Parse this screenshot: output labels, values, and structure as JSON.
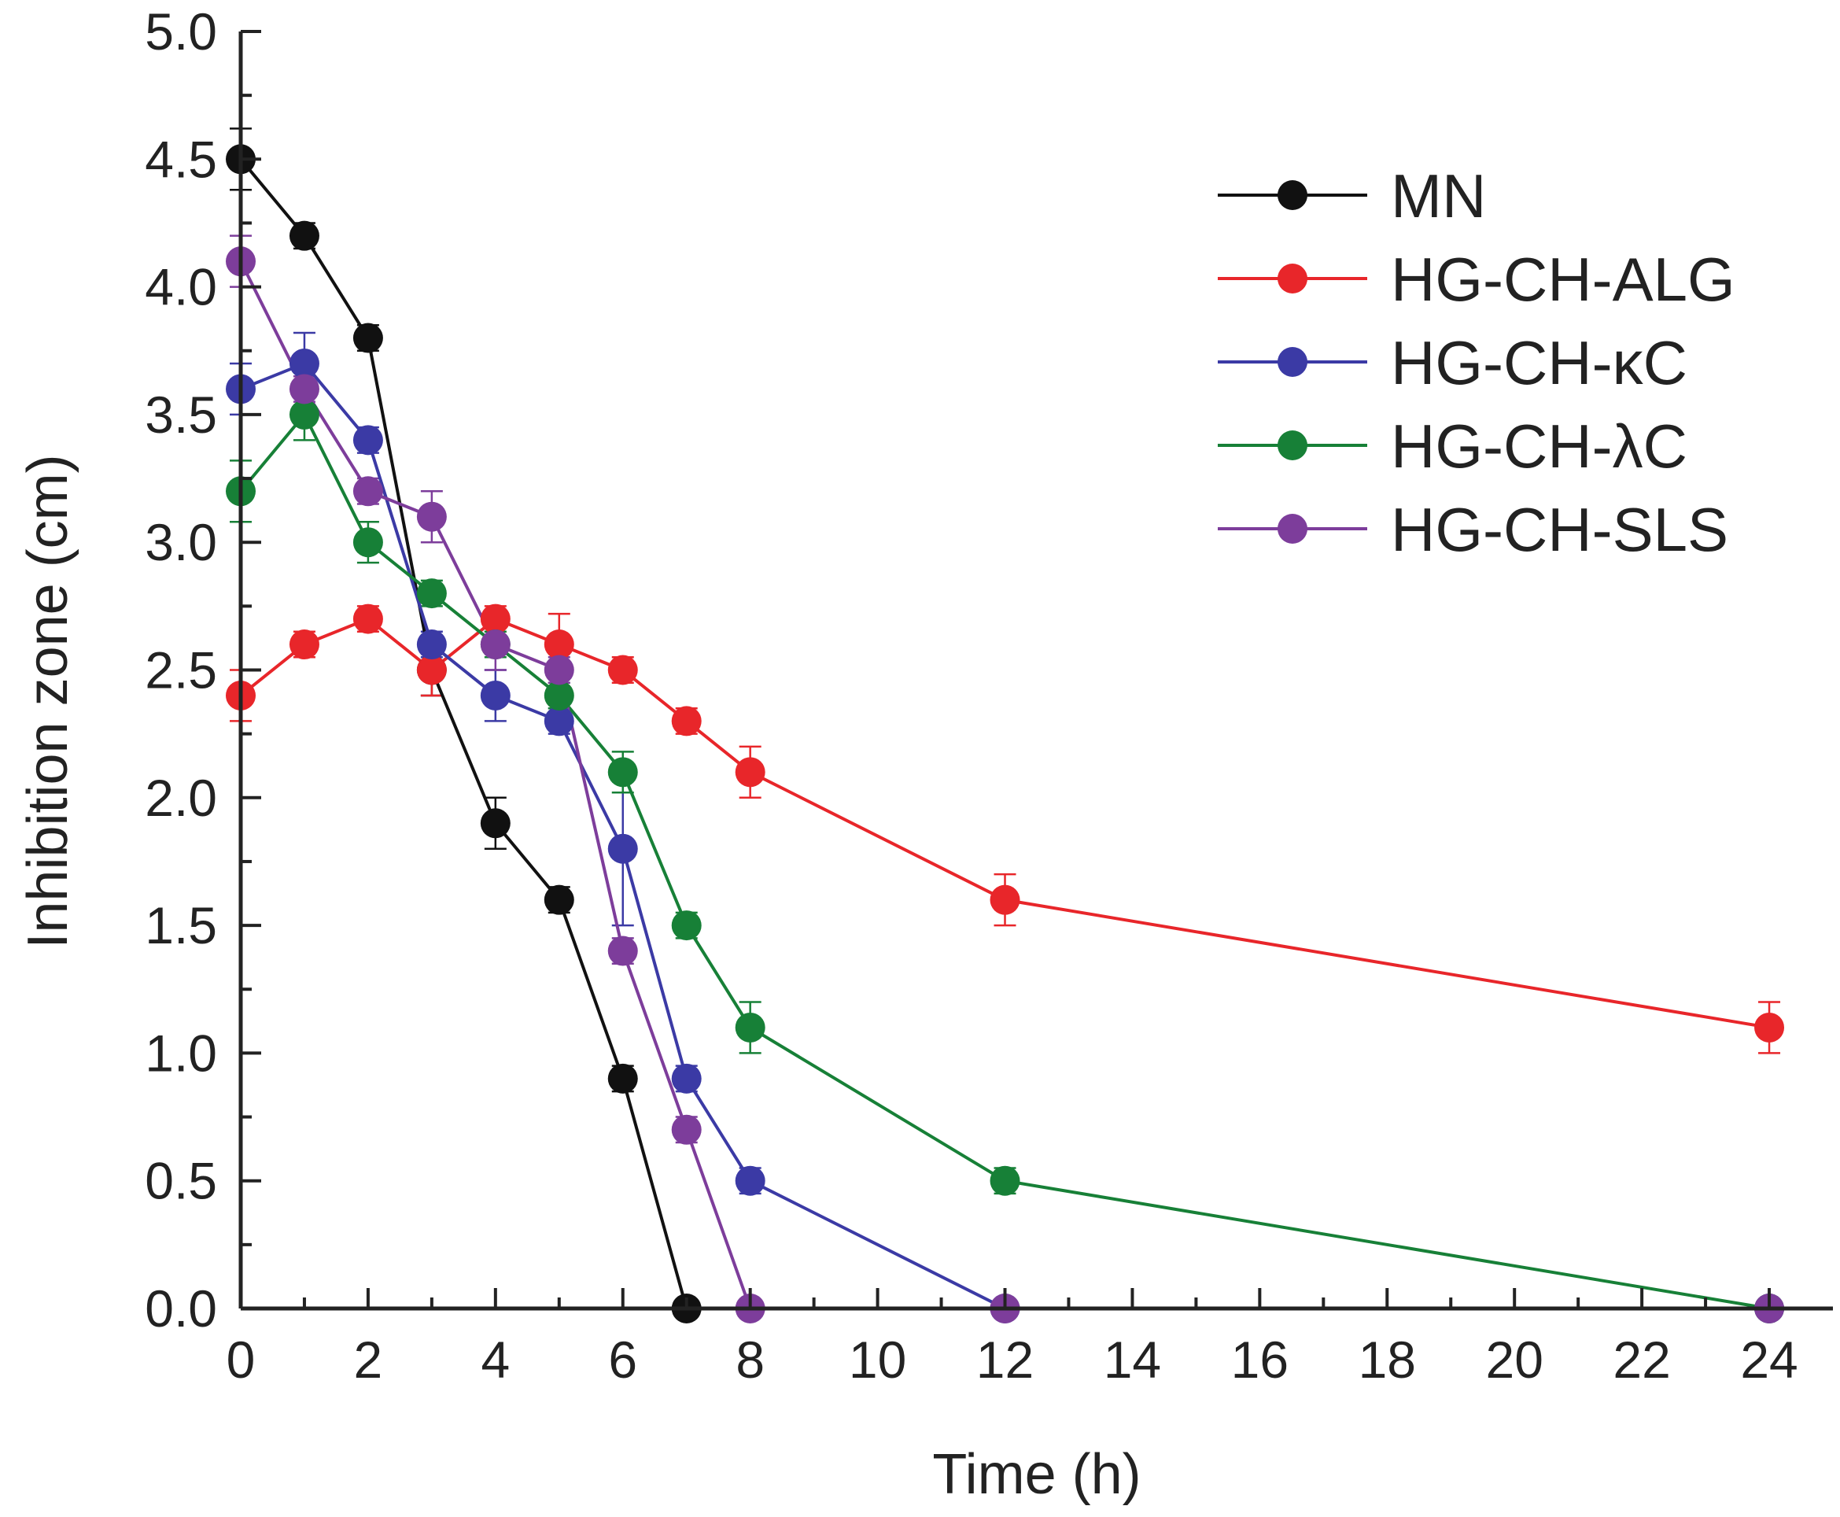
{
  "chart_data": {
    "type": "line",
    "title": "",
    "xlabel": "Time (h)",
    "ylabel": "Inhibition zone (cm)",
    "xlim": [
      0,
      25
    ],
    "ylim": [
      0,
      5
    ],
    "xticks": [
      0,
      2,
      4,
      6,
      8,
      10,
      12,
      14,
      16,
      18,
      20,
      22,
      24
    ],
    "xtick_labels": [
      "0",
      "2",
      "4",
      "6",
      "8",
      "10",
      "12",
      "14",
      "16",
      "18",
      "20",
      "22",
      "24"
    ],
    "yticks": [
      0,
      0.5,
      1,
      1.5,
      2,
      2.5,
      3,
      3.5,
      4,
      4.5,
      5
    ],
    "ytick_labels": [
      "0.0",
      "0.5",
      "1.0",
      "1.5",
      "2.0",
      "2.5",
      "3.0",
      "3.5",
      "4.0",
      "4.5",
      "5.0"
    ],
    "grid": false,
    "legend_position": "top-right",
    "series": [
      {
        "name": "MN",
        "color": "#111111",
        "x": [
          0,
          1,
          2,
          3,
          4,
          5,
          6,
          7
        ],
        "y": [
          4.5,
          4.2,
          3.8,
          2.5,
          1.9,
          1.6,
          0.9,
          0
        ],
        "err": [
          0.12,
          0.05,
          0.05,
          0.1,
          0.1,
          0.05,
          0.05,
          0
        ]
      },
      {
        "name": "HG-CH-ALG",
        "color": "#e8262a",
        "x": [
          0,
          1,
          2,
          3,
          4,
          5,
          6,
          7,
          8,
          12,
          24
        ],
        "y": [
          2.4,
          2.6,
          2.7,
          2.5,
          2.7,
          2.6,
          2.5,
          2.3,
          2.1,
          1.6,
          1.1
        ],
        "err": [
          0.1,
          0.05,
          0.05,
          0.1,
          0.05,
          0.12,
          0.05,
          0.05,
          0.1,
          0.1,
          0.1
        ]
      },
      {
        "name": "HG-CH-κC",
        "color": "#3b3aa5",
        "x": [
          0,
          1,
          2,
          3,
          4,
          5,
          6,
          7,
          8,
          12,
          24
        ],
        "y": [
          3.6,
          3.7,
          3.4,
          2.6,
          2.4,
          2.3,
          1.8,
          0.9,
          0.5,
          0,
          0
        ],
        "err": [
          0.1,
          0.12,
          0.05,
          0.05,
          0.1,
          0.05,
          0.3,
          0.05,
          0.05,
          0,
          0
        ]
      },
      {
        "name": "HG-CH-λC",
        "color": "#178037",
        "x": [
          0,
          1,
          2,
          3,
          4,
          5,
          6,
          7,
          8,
          12,
          24
        ],
        "y": [
          3.2,
          3.5,
          3.0,
          2.8,
          2.6,
          2.4,
          2.1,
          1.5,
          1.1,
          0.5,
          0
        ],
        "err": [
          0.12,
          0.1,
          0.08,
          0.05,
          0.05,
          0.05,
          0.08,
          0.05,
          0.1,
          0.05,
          0
        ]
      },
      {
        "name": "HG-CH-SLS",
        "color": "#7d3d9b",
        "x": [
          0,
          1,
          2,
          3,
          4,
          5,
          6,
          7,
          8,
          12,
          24
        ],
        "y": [
          4.1,
          3.6,
          3.2,
          3.1,
          2.6,
          2.5,
          1.4,
          0.7,
          0,
          0,
          0
        ],
        "err": [
          0.1,
          0.05,
          0.05,
          0.1,
          0.1,
          0.05,
          0.05,
          0.05,
          0,
          0,
          0
        ]
      }
    ]
  }
}
